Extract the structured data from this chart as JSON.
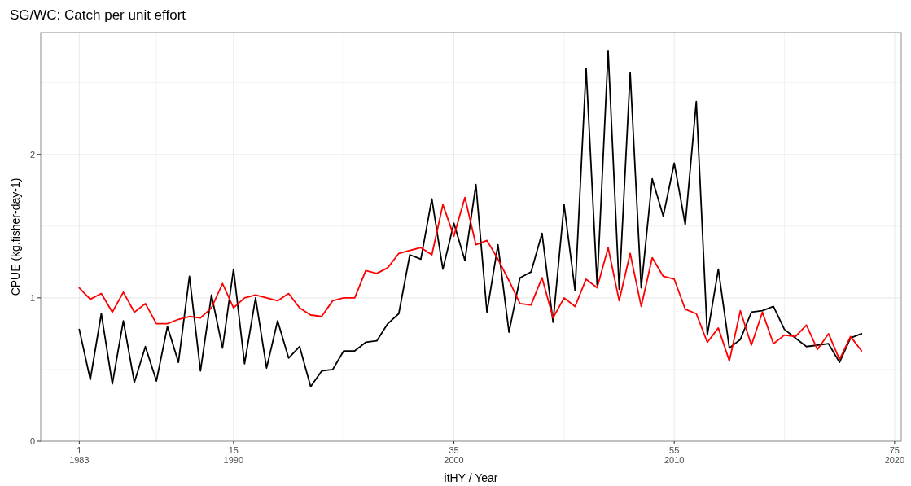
{
  "chart_data": {
    "type": "line",
    "title": "SG/WC: Catch per unit effort",
    "xlabel": "itHY / Year",
    "ylabel": "CPUE (kg.fisher-day-1)",
    "x": [
      1,
      2,
      3,
      4,
      5,
      6,
      7,
      8,
      9,
      10,
      11,
      12,
      13,
      14,
      15,
      16,
      17,
      18,
      19,
      20,
      21,
      22,
      23,
      24,
      25,
      26,
      27,
      28,
      29,
      30,
      31,
      32,
      33,
      34,
      35,
      36,
      37,
      38,
      39,
      40,
      41,
      42,
      43,
      44,
      45,
      46,
      47,
      48,
      49,
      50,
      51,
      52,
      53,
      54,
      55,
      56,
      57,
      58,
      59,
      60,
      61,
      62,
      63,
      64,
      65,
      66,
      67,
      68,
      69,
      70,
      71,
      72
    ],
    "series": [
      {
        "color": "#000000",
        "values": [
          0.78,
          0.43,
          0.89,
          0.4,
          0.84,
          0.41,
          0.66,
          0.42,
          0.8,
          0.55,
          1.15,
          0.49,
          1.02,
          0.65,
          1.2,
          0.54,
          1.0,
          0.51,
          0.84,
          0.58,
          0.66,
          0.38,
          0.49,
          0.5,
          0.63,
          0.63,
          0.69,
          0.7,
          0.82,
          0.89,
          1.3,
          1.27,
          1.69,
          1.2,
          1.52,
          1.26,
          1.79,
          0.9,
          1.37,
          0.76,
          1.14,
          1.18,
          1.45,
          0.83,
          1.65,
          1.05,
          2.6,
          1.09,
          2.72,
          1.06,
          2.57,
          1.07,
          1.83,
          1.57,
          1.94,
          1.51,
          2.37,
          0.74,
          1.2,
          0.65,
          0.71,
          0.9,
          0.91,
          0.94,
          0.78,
          0.72,
          0.66,
          0.67,
          0.68,
          0.55,
          0.72,
          0.75
        ]
      },
      {
        "color": "#ff0000",
        "values": [
          1.07,
          0.99,
          1.03,
          0.9,
          1.04,
          0.9,
          0.96,
          0.82,
          0.82,
          0.85,
          0.87,
          0.86,
          0.93,
          1.1,
          0.93,
          1.0,
          1.02,
          1.0,
          0.98,
          1.03,
          0.93,
          0.88,
          0.87,
          0.98,
          1.0,
          1.0,
          1.19,
          1.17,
          1.21,
          1.31,
          1.33,
          1.35,
          1.3,
          1.65,
          1.43,
          1.7,
          1.37,
          1.4,
          1.27,
          1.12,
          0.96,
          0.95,
          1.14,
          0.86,
          1.0,
          0.94,
          1.13,
          1.07,
          1.35,
          0.98,
          1.31,
          0.94,
          1.28,
          1.15,
          1.13,
          0.92,
          0.89,
          0.69,
          0.79,
          0.56,
          0.91,
          0.67,
          0.9,
          0.68,
          0.74,
          0.73,
          0.81,
          0.64,
          0.75,
          0.57,
          0.73,
          0.63
        ]
      }
    ],
    "xlim": [
      -2.5,
      75.6
    ],
    "xticks": [
      1,
      {
        "value": 8,
        "label": null
      },
      15,
      {
        "value": 25,
        "label": null
      },
      35,
      {
        "value": 45,
        "label": null
      },
      55,
      {
        "value": 65,
        "label": null
      },
      75
    ],
    "x2lim": [
      1981.25,
      2020.3
    ],
    "x2ticks": [
      1983,
      1990,
      2000,
      2010,
      2020
    ],
    "ylim": [
      0,
      2.85
    ],
    "yticks": [
      0,
      {
        "value": 0.5,
        "label": null
      },
      1,
      {
        "value": 1.5,
        "label": null
      },
      2,
      {
        "value": 2.5,
        "label": null
      }
    ],
    "grid": true,
    "line_style": "solid",
    "marker": "none"
  }
}
